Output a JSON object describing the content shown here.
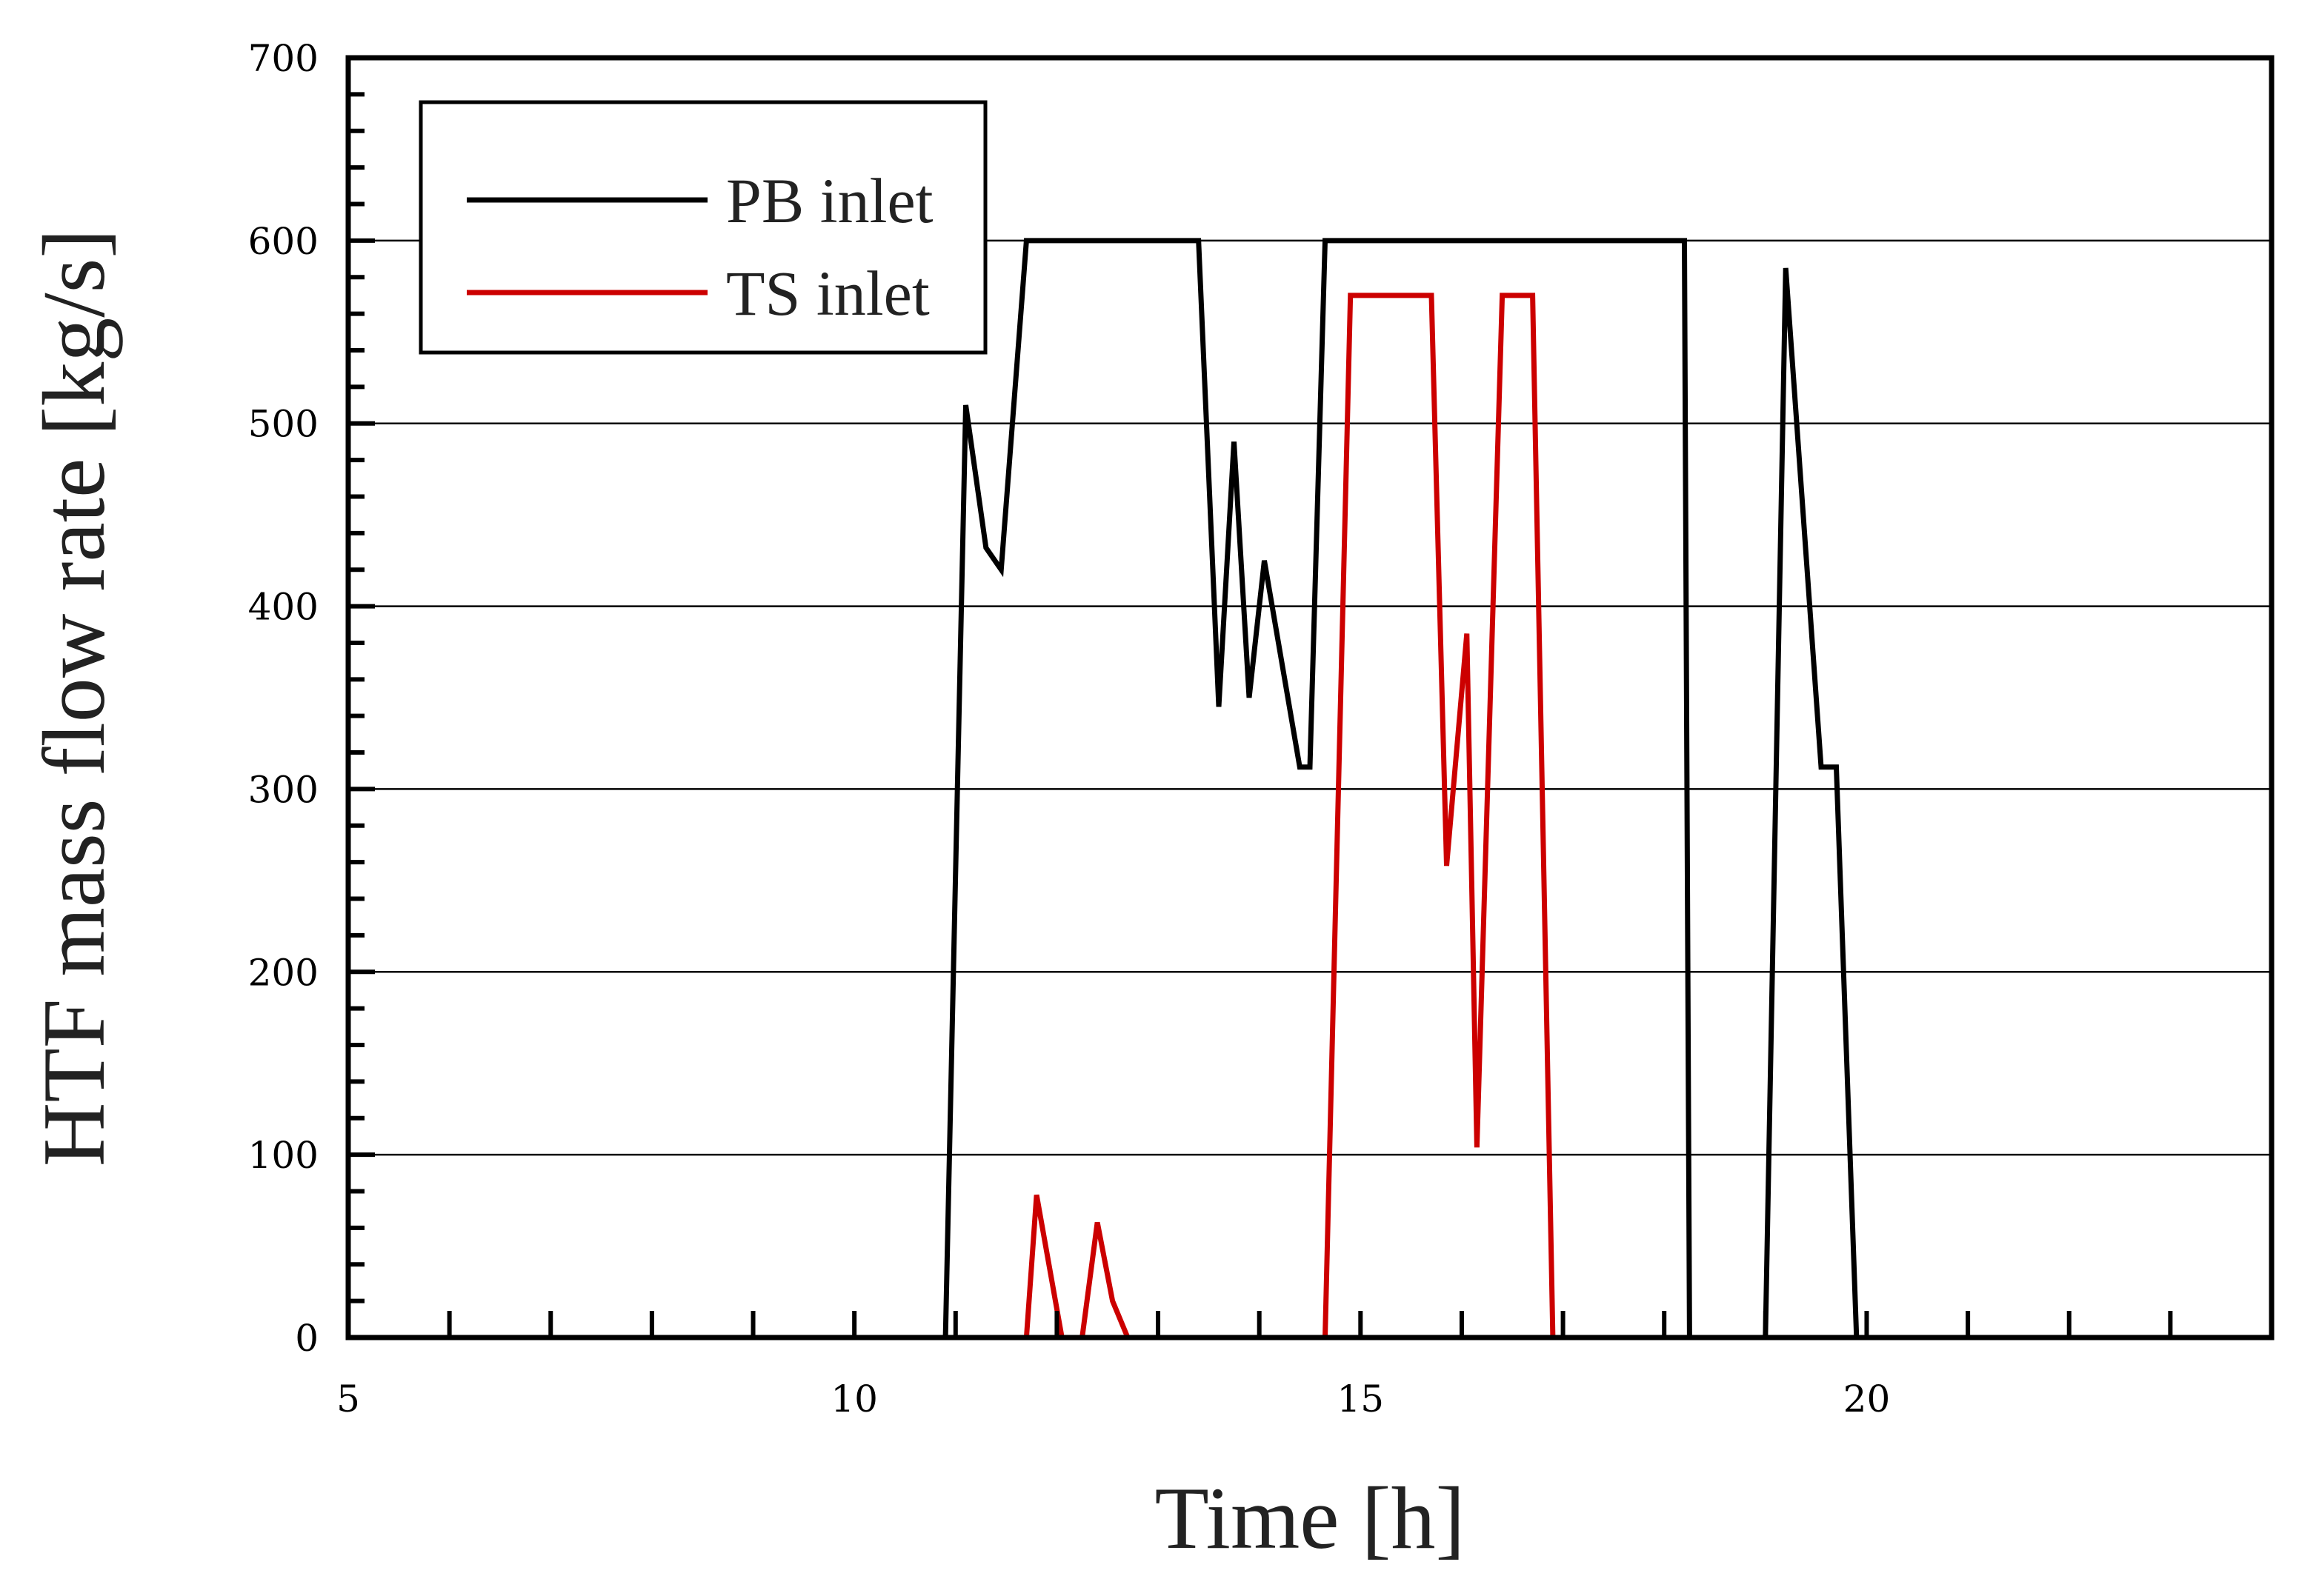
{
  "chart_data": {
    "type": "line",
    "title": "",
    "xlabel": "Time [h]",
    "ylabel": "HTF mass flow rate [kg/s]",
    "xlim": [
      5,
      24
    ],
    "ylim": [
      0,
      700
    ],
    "x_ticks": [
      5,
      10,
      15,
      20
    ],
    "y_ticks": [
      0,
      100,
      200,
      300,
      400,
      500,
      600,
      700
    ],
    "grid": "horizontal",
    "legend_position": "top-left",
    "series": [
      {
        "name": "PB inlet",
        "color": "#000000",
        "points": [
          [
            5,
            0
          ],
          [
            10.9,
            0
          ],
          [
            11.1,
            510
          ],
          [
            11.3,
            432
          ],
          [
            11.45,
            420
          ],
          [
            11.7,
            600
          ],
          [
            13.4,
            600
          ],
          [
            13.6,
            345
          ],
          [
            13.75,
            490
          ],
          [
            13.9,
            350
          ],
          [
            14.05,
            425
          ],
          [
            14.4,
            312
          ],
          [
            14.5,
            312
          ],
          [
            14.65,
            600
          ],
          [
            18.2,
            600
          ],
          [
            18.25,
            0
          ],
          [
            19.0,
            0
          ],
          [
            19.2,
            585
          ],
          [
            19.55,
            312
          ],
          [
            19.7,
            312
          ],
          [
            19.9,
            0
          ],
          [
            24,
            0
          ]
        ]
      },
      {
        "name": "TS inlet",
        "color": "#cc0000",
        "points": [
          [
            5,
            0
          ],
          [
            11.7,
            0
          ],
          [
            11.8,
            78
          ],
          [
            12.05,
            0
          ],
          [
            12.25,
            0
          ],
          [
            12.4,
            63
          ],
          [
            12.55,
            20
          ],
          [
            12.7,
            0
          ],
          [
            14.65,
            0
          ],
          [
            14.9,
            570
          ],
          [
            15.7,
            570
          ],
          [
            15.85,
            258
          ],
          [
            16.05,
            385
          ],
          [
            16.15,
            104
          ],
          [
            16.4,
            570
          ],
          [
            16.7,
            570
          ],
          [
            16.9,
            0
          ],
          [
            24,
            0
          ]
        ]
      }
    ]
  }
}
